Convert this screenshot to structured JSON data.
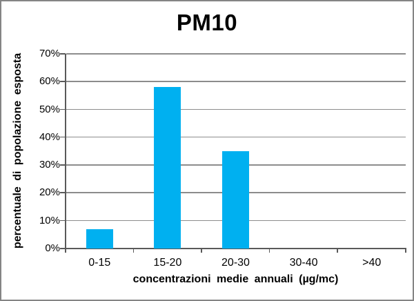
{
  "chart_data": {
    "type": "bar",
    "title": "PM10",
    "categories": [
      "0-15",
      "15-20",
      "20-30",
      "30-40",
      ">40"
    ],
    "values": [
      7,
      58,
      35,
      0,
      0
    ],
    "xlabel": "concentrazioni medie annuali (µg/mc)",
    "ylabel": "percentuale di popolazione esposta",
    "ylim": [
      0,
      70
    ],
    "ytick_step": 10,
    "ytick_labels": [
      "0%",
      "10%",
      "20%",
      "30%",
      "40%",
      "50%",
      "60%",
      "70%"
    ],
    "grid": true,
    "legend": false,
    "colors": {
      "bar": "#00B0F0",
      "gridline": "#8c8c8c",
      "axis": "#595959",
      "text": "#000000",
      "window_border": "#848484",
      "background": "#ffffff"
    }
  }
}
